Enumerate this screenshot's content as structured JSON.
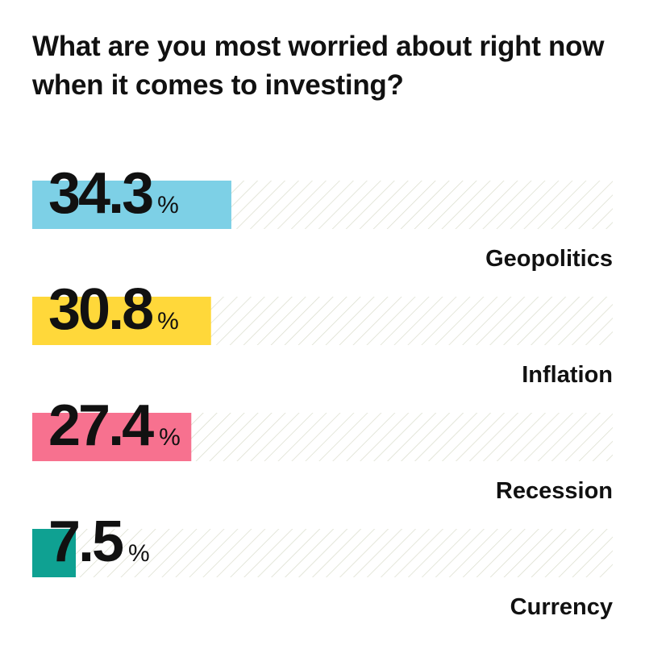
{
  "chart_data": {
    "type": "bar",
    "title": "What are you most worried about right now when it comes to investing?",
    "categories": [
      "Geopolitics",
      "Inflation",
      "Recession",
      "Currency"
    ],
    "values": [
      34.3,
      30.8,
      27.4,
      7.5
    ],
    "unit": "%",
    "xlim": [
      0,
      100
    ],
    "colors": [
      "#7dd0e6",
      "#ffd83a",
      "#f7718f",
      "#0fa192"
    ],
    "track_pattern": "diagonal-hatch",
    "track_color": "#d9dccb"
  }
}
